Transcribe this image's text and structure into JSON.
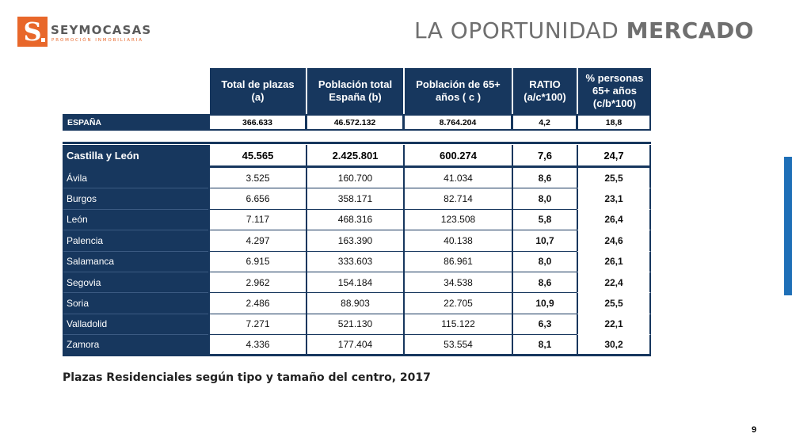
{
  "brand": {
    "mark": "S",
    "name": "SEYMOCASAS",
    "tagline": "PROMOCIÓN INMOBILIARIA",
    "color": "#e8672a"
  },
  "header": {
    "title_light": "LA OPORTUNIDAD",
    "title_bold": "MERCADO"
  },
  "table": {
    "columns": [
      "Total de plazas (a)",
      "Población total España (b)",
      "Población de 65+ años ( c )",
      "RATIO (a/c*100)",
      "% personas 65+ años (c/b*100)"
    ],
    "espana": {
      "name": "ESPAÑA",
      "values": [
        "366.633",
        "46.572.132",
        "8.764.204",
        "4,2",
        "18,8"
      ]
    },
    "region": {
      "name": "Castilla y León",
      "values": [
        "45.565",
        "2.425.801",
        "600.274",
        "7,6",
        "24,7"
      ]
    },
    "provinces": [
      {
        "name": "Ávila",
        "values": [
          "3.525",
          "160.700",
          "41.034",
          "8,6",
          "25,5"
        ]
      },
      {
        "name": "Burgos",
        "values": [
          "6.656",
          "358.171",
          "82.714",
          "8,0",
          "23,1"
        ]
      },
      {
        "name": "León",
        "values": [
          "7.117",
          "468.316",
          "123.508",
          "5,8",
          "26,4"
        ]
      },
      {
        "name": "Palencia",
        "values": [
          "4.297",
          "163.390",
          "40.138",
          "10,7",
          "24,6"
        ]
      },
      {
        "name": "Salamanca",
        "values": [
          "6.915",
          "333.603",
          "86.961",
          "8,0",
          "26,1"
        ]
      },
      {
        "name": "Segovia",
        "values": [
          "2.962",
          "154.184",
          "34.538",
          "8,6",
          "22,4"
        ]
      },
      {
        "name": "Soria",
        "values": [
          "2.486",
          "88.903",
          "22.705",
          "10,9",
          "25,5"
        ]
      },
      {
        "name": "Valladolid",
        "values": [
          "7.271",
          "521.130",
          "115.122",
          "6,3",
          "22,1"
        ]
      },
      {
        "name": "Zamora",
        "values": [
          "4.336",
          "177.404",
          "53.554",
          "8,1",
          "30,2"
        ]
      }
    ],
    "header_color": "#17375e"
  },
  "caption": "Plazas Residenciales según tipo y tamaño del centro, 2017",
  "page_number": "9",
  "accent_color": "#1e6fb7"
}
